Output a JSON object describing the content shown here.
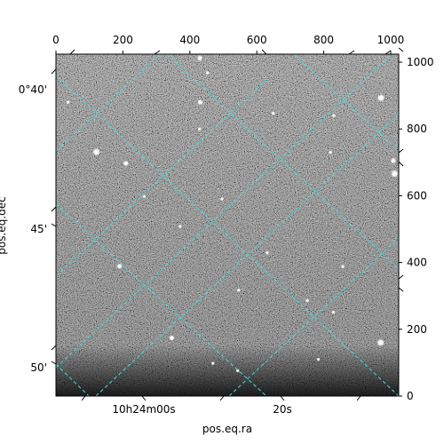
{
  "chart_data": {
    "type": "image",
    "xlabel": "pos.eq.ra",
    "ylabel": "pos.eq.dec",
    "pixel_axes": {
      "top_ticks": [
        "0",
        "200",
        "400",
        "600",
        "800",
        "1000"
      ],
      "top_tick_values": [
        0,
        200,
        400,
        600,
        800,
        1000
      ],
      "right_ticks": [
        "0",
        "200",
        "400",
        "600",
        "800",
        "1000"
      ],
      "right_tick_values": [
        0,
        200,
        400,
        600,
        800,
        1000
      ],
      "xlim": [
        0,
        1024
      ],
      "ylim": [
        0,
        1024
      ]
    },
    "world_ticks": {
      "ra_labels": [
        "10h24m00s",
        "20s"
      ],
      "dec_labels": [
        "0°40'",
        "45'",
        "50'"
      ]
    },
    "grid": true,
    "grid_color": "#40e0e0",
    "colormap": "gray",
    "stars": [
      {
        "x": 121,
        "y": 731,
        "b": 4
      },
      {
        "x": 190,
        "y": 389,
        "b": 3
      },
      {
        "x": 209,
        "y": 697,
        "b": 3
      },
      {
        "x": 346,
        "y": 174,
        "b": 3
      },
      {
        "x": 431,
        "y": 880,
        "b": 3
      },
      {
        "x": 430,
        "y": 1012,
        "b": 3
      },
      {
        "x": 970,
        "y": 160,
        "b": 4
      },
      {
        "x": 971,
        "y": 893,
        "b": 4
      },
      {
        "x": 1012,
        "y": 666,
        "b": 4
      },
      {
        "x": 1008,
        "y": 705,
        "b": 3
      },
      {
        "x": 429,
        "y": 800,
        "b": 2
      },
      {
        "x": 371,
        "y": 508,
        "b": 2
      },
      {
        "x": 264,
        "y": 598,
        "b": 2
      },
      {
        "x": 496,
        "y": 590,
        "b": 2
      },
      {
        "x": 631,
        "y": 429,
        "b": 2
      },
      {
        "x": 751,
        "y": 286,
        "b": 2
      },
      {
        "x": 829,
        "y": 251,
        "b": 2
      },
      {
        "x": 649,
        "y": 847,
        "b": 2
      },
      {
        "x": 857,
        "y": 388,
        "b": 2
      },
      {
        "x": 543,
        "y": 76,
        "b": 2
      },
      {
        "x": 453,
        "y": 968,
        "b": 2
      },
      {
        "x": 36,
        "y": 880,
        "b": 2
      },
      {
        "x": 546,
        "y": 317,
        "b": 2
      },
      {
        "x": 820,
        "y": 730,
        "b": 2
      },
      {
        "x": 784,
        "y": 110,
        "b": 2
      },
      {
        "x": 469,
        "y": 98,
        "b": 2
      },
      {
        "x": 830,
        "y": 840,
        "b": 2
      }
    ]
  }
}
